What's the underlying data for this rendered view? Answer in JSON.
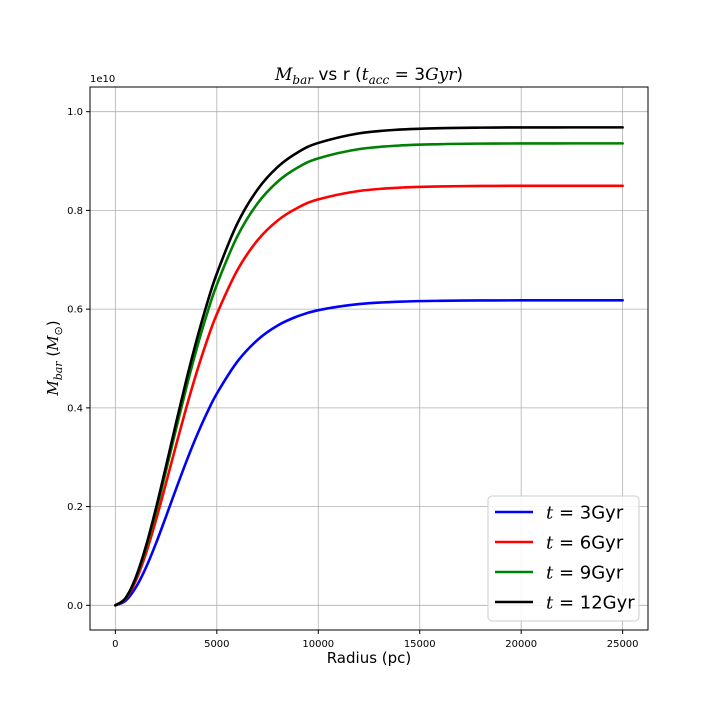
{
  "chart_data": {
    "type": "line",
    "title_parts": {
      "m": "M",
      "m_sub": "bar",
      "mid": " vs r (",
      "t": "t",
      "t_sub": "acc",
      "eq": " = 3",
      "unit": "Gyr",
      "close": ")"
    },
    "xlabel": "Radius (pc)",
    "ylabel_parts": {
      "m": "M",
      "m_sub": "bar",
      "open": " (",
      "msun": "M",
      "msun_sub": "⊙",
      "close": ")"
    },
    "offset_label": "1e10",
    "xlim": [
      -1250,
      26250
    ],
    "ylim": [
      -0.05,
      1.05
    ],
    "xticks": [
      0,
      5000,
      10000,
      15000,
      20000,
      25000
    ],
    "xtick_labels": [
      "0",
      "5000",
      "10000",
      "15000",
      "20000",
      "25000"
    ],
    "yticks": [
      0.0,
      0.2,
      0.4,
      0.6,
      0.8,
      1.0
    ],
    "ytick_labels": [
      "0.0",
      "0.2",
      "0.4",
      "0.6",
      "0.8",
      "1.0"
    ],
    "grid": true,
    "legend_position": "lower-right",
    "x": [
      0,
      500,
      1000,
      1500,
      2000,
      2500,
      3000,
      3500,
      4000,
      4500,
      5000,
      6000,
      7000,
      8000,
      9000,
      10000,
      12000,
      14000,
      16000,
      18000,
      20000,
      22500,
      25000
    ],
    "series": [
      {
        "t": "t",
        "eq": " = 3Gyr",
        "color": "#0000ff",
        "values": [
          0,
          0.0093,
          0.0357,
          0.0758,
          0.1254,
          0.1804,
          0.2367,
          0.2915,
          0.3425,
          0.3885,
          0.4289,
          0.4931,
          0.5374,
          0.5668,
          0.5858,
          0.5979,
          0.6102,
          0.6151,
          0.6169,
          0.6176,
          0.6178,
          0.6179,
          0.6179
        ]
      },
      {
        "t": "t",
        "eq": " = 6Gyr",
        "color": "#ff0000",
        "values": [
          0,
          0.0128,
          0.0491,
          0.1043,
          0.1725,
          0.2481,
          0.3256,
          0.401,
          0.4711,
          0.5343,
          0.5899,
          0.6781,
          0.7391,
          0.7796,
          0.8057,
          0.8223,
          0.8393,
          0.846,
          0.8485,
          0.8495,
          0.8498,
          0.8499,
          0.8499
        ]
      },
      {
        "t": "t",
        "eq": " = 9Gyr",
        "color": "#008000",
        "values": [
          0,
          0.0141,
          0.0541,
          0.1148,
          0.1899,
          0.2732,
          0.3585,
          0.4415,
          0.5187,
          0.5883,
          0.6494,
          0.7466,
          0.8137,
          0.8583,
          0.8871,
          0.9054,
          0.9241,
          0.9315,
          0.9342,
          0.9353,
          0.9356,
          0.9358,
          0.9358
        ]
      },
      {
        "t": "t",
        "eq": " = 12Gyr",
        "color": "#000000",
        "values": [
          0,
          0.0146,
          0.056,
          0.1188,
          0.1965,
          0.2826,
          0.3709,
          0.4568,
          0.5366,
          0.6087,
          0.6719,
          0.7725,
          0.8419,
          0.8881,
          0.9179,
          0.9367,
          0.9561,
          0.9637,
          0.9666,
          0.9677,
          0.9681,
          0.9682,
          0.9682
        ]
      }
    ]
  }
}
